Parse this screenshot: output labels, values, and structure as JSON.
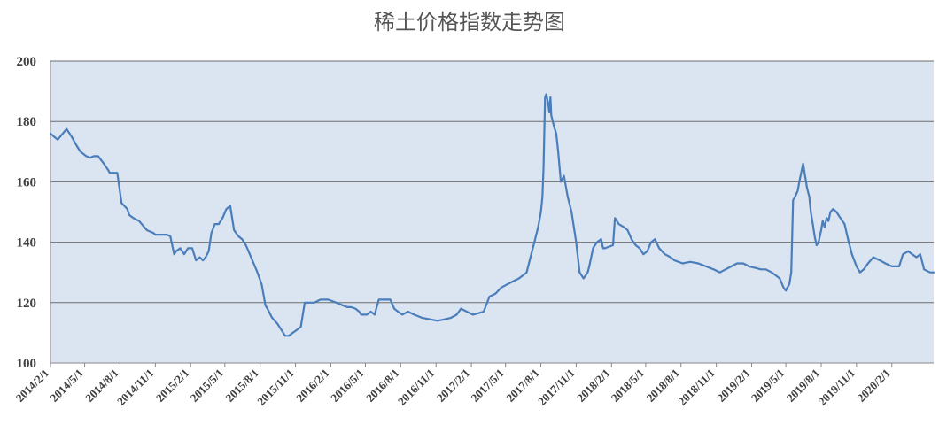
{
  "chart_data": {
    "type": "line",
    "title": "稀土价格指数走势图",
    "xlabel": "",
    "ylabel": "",
    "ylim": [
      100,
      200
    ],
    "yticks": [
      "100",
      "120",
      "140",
      "160",
      "180",
      "200"
    ],
    "xlim": [
      "2014-02-01",
      "2020-05-20"
    ],
    "xtick_labels": [
      "2014/2/1",
      "2014/5/1",
      "2014/8/1",
      "2014/11/1",
      "2015/2/1",
      "2015/5/1",
      "2015/8/1",
      "2015/11/1",
      "2016/2/1",
      "2016/5/1",
      "2016/8/1",
      "2016/11/1",
      "2017/2/1",
      "2017/5/1",
      "2017/8/1",
      "2017/11/1",
      "2018/2/1",
      "2018/5/1",
      "2018/8/1",
      "2018/11/1",
      "2019/2/1",
      "2019/5/1",
      "2019/8/1",
      "2019/11/1",
      "2020/2/1"
    ],
    "grid": true,
    "legend": "none",
    "colors": {
      "line": "#4a7ebb",
      "plot_bg": "#dbe4f1",
      "grid": "#6e6e6e",
      "axis": "#888888"
    },
    "series": [
      {
        "x": [
          "2014-02-01",
          "2014-02-10",
          "2014-02-20",
          "2014-03-05",
          "2014-03-15",
          "2014-03-28",
          "2014-04-10",
          "2014-04-20",
          "2014-05-05",
          "2014-05-15",
          "2014-05-25",
          "2014-06-05",
          "2014-06-20",
          "2014-06-25",
          "2014-07-01",
          "2014-07-05",
          "2014-07-15",
          "2014-07-25",
          "2014-08-05",
          "2014-08-20",
          "2014-08-25",
          "2014-09-05",
          "2014-09-20",
          "2014-10-10",
          "2014-10-28",
          "2014-11-01",
          "2014-11-10",
          "2014-11-20",
          "2014-11-25",
          "2014-12-01",
          "2014-12-10",
          "2014-12-20",
          "2014-12-25",
          "2015-01-05",
          "2015-01-15",
          "2015-01-25",
          "2015-02-05",
          "2015-02-15",
          "2015-02-25",
          "2015-03-05",
          "2015-03-12",
          "2015-03-20",
          "2015-03-27",
          "2015-04-05",
          "2015-04-15",
          "2015-04-25",
          "2015-05-05",
          "2015-05-15",
          "2015-05-25",
          "2015-06-05",
          "2015-06-15",
          "2015-06-25",
          "2015-07-05",
          "2015-07-15",
          "2015-07-25",
          "2015-08-05",
          "2015-08-15",
          "2015-08-20",
          "2015-09-01",
          "2015-09-15",
          "2015-10-05",
          "2015-10-10",
          "2015-10-15",
          "2015-10-25",
          "2015-11-05",
          "2015-11-15",
          "2015-11-25",
          "2015-12-05",
          "2015-12-20",
          "2016-01-05",
          "2016-01-25",
          "2016-02-15",
          "2016-03-05",
          "2016-03-15",
          "2016-03-25",
          "2016-04-05",
          "2016-04-15",
          "2016-04-20",
          "2016-05-05",
          "2016-05-15",
          "2016-05-25",
          "2016-06-05",
          "2016-06-15",
          "2016-06-25",
          "2016-07-05",
          "2016-07-15",
          "2016-07-25",
          "2016-08-05",
          "2016-08-20",
          "2016-09-05",
          "2016-09-25",
          "2016-10-15",
          "2016-11-05",
          "2016-11-25",
          "2016-12-10",
          "2016-12-25",
          "2017-01-05",
          "2017-01-20",
          "2017-02-05",
          "2017-02-20",
          "2017-03-05",
          "2017-03-20",
          "2017-04-05",
          "2017-04-20",
          "2017-05-05",
          "2017-05-20",
          "2017-06-05",
          "2017-06-15",
          "2017-06-25",
          "2017-07-05",
          "2017-07-15",
          "2017-07-25",
          "2017-08-01",
          "2017-08-05",
          "2017-08-08",
          "2017-08-12",
          "2017-08-15",
          "2017-08-20",
          "2017-08-23",
          "2017-08-26",
          "2017-08-28",
          "2017-09-01",
          "2017-09-05",
          "2017-09-10",
          "2017-09-15",
          "2017-09-22",
          "2017-09-30",
          "2017-10-10",
          "2017-10-20",
          "2017-11-01",
          "2017-11-10",
          "2017-11-20",
          "2017-12-01",
          "2017-12-05",
          "2017-12-15",
          "2017-12-25",
          "2018-01-05",
          "2018-01-10",
          "2018-01-15",
          "2018-02-05",
          "2018-02-10",
          "2018-02-15",
          "2018-02-20",
          "2018-03-05",
          "2018-03-15",
          "2018-03-25",
          "2018-04-05",
          "2018-04-15",
          "2018-04-25",
          "2018-05-05",
          "2018-05-15",
          "2018-05-25",
          "2018-06-05",
          "2018-06-20",
          "2018-07-05",
          "2018-07-15",
          "2018-08-05",
          "2018-08-25",
          "2018-09-15",
          "2018-10-05",
          "2018-10-25",
          "2018-11-10",
          "2018-11-25",
          "2018-12-10",
          "2018-12-25",
          "2019-01-10",
          "2019-01-25",
          "2019-02-10",
          "2019-02-25",
          "2019-03-10",
          "2019-03-25",
          "2019-04-05",
          "2019-04-15",
          "2019-04-25",
          "2019-05-01",
          "2019-05-05",
          "2019-05-10",
          "2019-05-15",
          "2019-05-20",
          "2019-05-25",
          "2019-06-01",
          "2019-06-05",
          "2019-06-10",
          "2019-06-15",
          "2019-06-20",
          "2019-06-25",
          "2019-07-01",
          "2019-07-05",
          "2019-07-10",
          "2019-07-15",
          "2019-07-20",
          "2019-07-25",
          "2019-08-01",
          "2019-08-05",
          "2019-08-10",
          "2019-08-15",
          "2019-08-20",
          "2019-08-25",
          "2019-09-01",
          "2019-09-10",
          "2019-09-20",
          "2019-10-01",
          "2019-10-10",
          "2019-10-20",
          "2019-11-01",
          "2019-11-10",
          "2019-11-20",
          "2019-12-01",
          "2019-12-15",
          "2020-01-01",
          "2020-01-15",
          "2020-02-01",
          "2020-02-10",
          "2020-02-20",
          "2020-03-01",
          "2020-03-15",
          "2020-03-25",
          "2020-04-05",
          "2020-04-15",
          "2020-04-25",
          "2020-05-10",
          "2020-05-20"
        ],
        "y": [
          176,
          175,
          174,
          176,
          177.5,
          175,
          172,
          170,
          168.5,
          168,
          168.5,
          168.5,
          166,
          165,
          164,
          163,
          163,
          163,
          153,
          151,
          149,
          148,
          147,
          144,
          143,
          142.5,
          142.5,
          142.5,
          142.5,
          142.5,
          142,
          136,
          137,
          138,
          136,
          138,
          138,
          134,
          135,
          134,
          135,
          137,
          143,
          146,
          146,
          148,
          151,
          152,
          144,
          142,
          141,
          139,
          136,
          133,
          130,
          126,
          119,
          118,
          115,
          113,
          109,
          109,
          109,
          110,
          111,
          112,
          120,
          120,
          120,
          121,
          121,
          120,
          119,
          118.5,
          118.5,
          118,
          117,
          116,
          116,
          117,
          116,
          121,
          121,
          121,
          121,
          118,
          117,
          116,
          117,
          116,
          115,
          114.5,
          114,
          114.5,
          115,
          116,
          118,
          117,
          116,
          116.5,
          117,
          122,
          123,
          125,
          126,
          127,
          128,
          129,
          130,
          135,
          140,
          145,
          150,
          155,
          165,
          188,
          189,
          186,
          183,
          188,
          182,
          180,
          178,
          176,
          170,
          160,
          162,
          155,
          150,
          140,
          130,
          128,
          130,
          132,
          138,
          140,
          141,
          138,
          138,
          139,
          148,
          147,
          146,
          145,
          144,
          141,
          139,
          138,
          136,
          137,
          140,
          141,
          138,
          136,
          135,
          134,
          133,
          133.5,
          133,
          132,
          131,
          130,
          131,
          132,
          133,
          133,
          132,
          131.5,
          131,
          131,
          130,
          129,
          128,
          125,
          124,
          125,
          126,
          130,
          154,
          155,
          157,
          160,
          163,
          166,
          162,
          158,
          155,
          150,
          146,
          142,
          139,
          140,
          144,
          147,
          145,
          148,
          147,
          150,
          151,
          150,
          148,
          146,
          141,
          136,
          132,
          130,
          131,
          133,
          135,
          134,
          133,
          132,
          132,
          132,
          136,
          137,
          136,
          135,
          136,
          131,
          130,
          130
        ]
      }
    ]
  }
}
